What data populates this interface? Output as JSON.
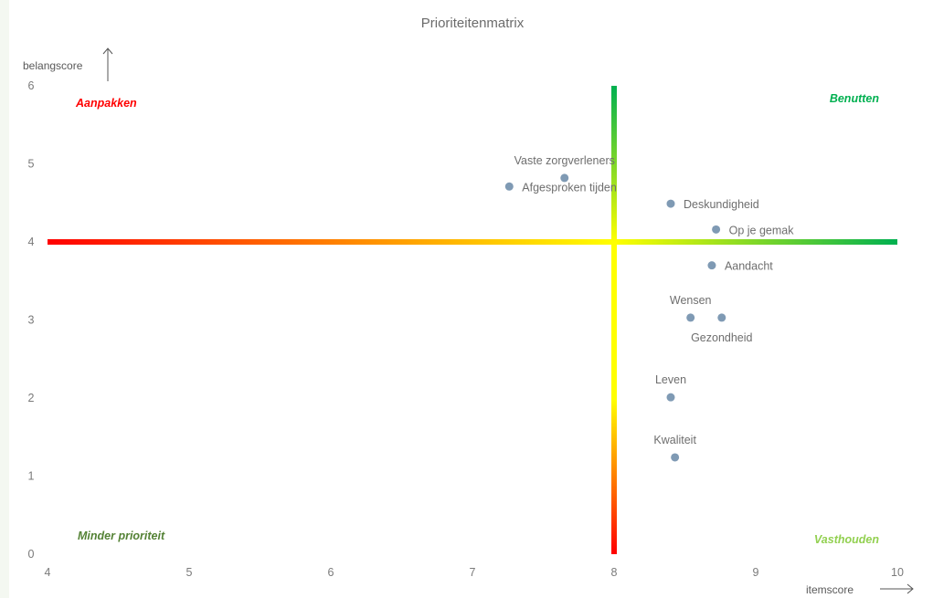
{
  "chart_data": {
    "type": "scatter",
    "title": "Prioriteitenmatrix",
    "xlabel": "itemscore",
    "ylabel": "belangscore",
    "xlim": [
      4,
      10
    ],
    "ylim": [
      0,
      6
    ],
    "x_ticks": [
      "4",
      "5",
      "6",
      "7",
      "8",
      "9",
      "10"
    ],
    "y_ticks": [
      "0",
      "1",
      "2",
      "3",
      "4",
      "5",
      "6"
    ],
    "grid": false,
    "divider_x": 8,
    "divider_y": 4,
    "points": [
      {
        "label": "Vaste zorgverleners",
        "x": 7.65,
        "y": 4.82,
        "label_pos": "above"
      },
      {
        "label": "Afgesproken tijden",
        "x": 7.26,
        "y": 4.71,
        "label_pos": "right"
      },
      {
        "label": "Deskundigheid",
        "x": 8.4,
        "y": 4.49,
        "label_pos": "right"
      },
      {
        "label": "Op je gemak",
        "x": 8.72,
        "y": 4.16,
        "label_pos": "right"
      },
      {
        "label": "Aandacht",
        "x": 8.69,
        "y": 3.7,
        "label_pos": "right"
      },
      {
        "label": "Wensen",
        "x": 8.54,
        "y": 3.03,
        "label_pos": "above"
      },
      {
        "label": "Gezondheid",
        "x": 8.76,
        "y": 3.03,
        "label_pos": "below"
      },
      {
        "label": "Leven",
        "x": 8.4,
        "y": 2.01,
        "label_pos": "above"
      },
      {
        "label": "Kwaliteit",
        "x": 8.43,
        "y": 1.24,
        "label_pos": "above"
      }
    ],
    "quadrants": [
      {
        "label": "Aanpakken",
        "position": "top-left",
        "color": "#ff0000"
      },
      {
        "label": "Benutten",
        "position": "top-right",
        "color": "#00b050"
      },
      {
        "label": "Minder prioriteit",
        "position": "bottom-left",
        "color": "#548235"
      },
      {
        "label": "Vasthouden",
        "position": "bottom-right",
        "color": "#92d050"
      }
    ],
    "colors": {
      "point": "#7f9ab4",
      "gradient_low": "#ff0000",
      "gradient_mid": "#ffff00",
      "gradient_high": "#00b050"
    }
  }
}
